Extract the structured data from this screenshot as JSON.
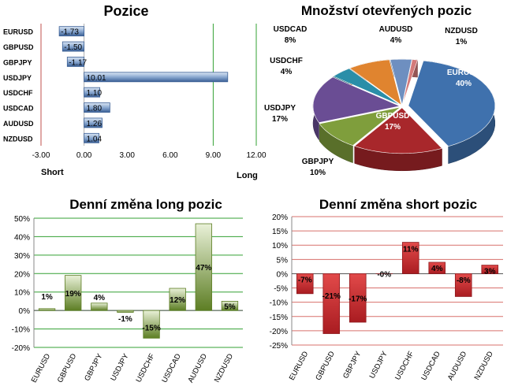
{
  "charts": {
    "positions": {
      "title": "Pozice",
      "short_label": "Short",
      "long_label": "Long"
    },
    "open_positions": {
      "title": "Množství otevřených pozic"
    },
    "long_change": {
      "title": "Denní změna long pozic"
    },
    "short_change": {
      "title": "Denní změna short pozic"
    }
  },
  "colors": {
    "bar_blue": "#3f6faa",
    "bar_green": "#6d8f2e",
    "bar_red": "#c0272d",
    "grid_green": "#33a033",
    "axis_red": "#c0504d",
    "pie": [
      "#3f71ad",
      "#a8272b",
      "#7f9e3c",
      "#6a4d94",
      "#2a8ea8",
      "#e0842f",
      "#6e8fc0",
      "#d47a7a"
    ]
  },
  "chart_data": [
    {
      "type": "bar",
      "orientation": "horizontal",
      "title": "Pozice",
      "categories": [
        "EURUSD",
        "GBPUSD",
        "GBPJPY",
        "USDJPY",
        "USDCHF",
        "USDCAD",
        "AUDUSD",
        "NZDUSD"
      ],
      "values": [
        -1.73,
        -1.5,
        -1.17,
        10.01,
        1.1,
        1.8,
        1.26,
        1.04
      ],
      "value_labels": [
        "-1.73",
        "-1.50",
        "-1.17",
        "10.01",
        "1.10",
        "1.80",
        "1.26",
        "1.04"
      ],
      "xlim": [
        -3,
        12
      ],
      "xticks": [
        "-3.00",
        "0.00",
        "3.00",
        "6.00",
        "9.00",
        "12.00"
      ],
      "xlabel_left": "Short",
      "xlabel_right": "Long"
    },
    {
      "type": "pie",
      "title": "Množství otevřených pozic",
      "labels": [
        "EURUSD",
        "GBPUSD",
        "GBPJPY",
        "USDJPY",
        "USDCHF",
        "USDCAD",
        "AUDUSD",
        "NZDUSD"
      ],
      "values": [
        40,
        17,
        10,
        17,
        4,
        8,
        4,
        1
      ],
      "value_labels": [
        "40%",
        "17%",
        "10%",
        "17%",
        "4%",
        "8%",
        "4%",
        "1%"
      ]
    },
    {
      "type": "bar",
      "title": "Denní změna long pozic",
      "categories": [
        "EURUSD",
        "GBPUSD",
        "GBPJPY",
        "USDJPY",
        "USDCHF",
        "USDCAD",
        "AUDUSD",
        "NZDUSD"
      ],
      "values": [
        1,
        19,
        4,
        -1,
        -15,
        12,
        47,
        5
      ],
      "value_labels": [
        "1%",
        "19%",
        "4%",
        "-1%",
        "-15%",
        "12%",
        "47%",
        "5%"
      ],
      "ylim": [
        -20,
        50
      ],
      "yticks": [
        "50%",
        "40%",
        "30%",
        "20%",
        "10%",
        "0%",
        "-10%",
        "-20%"
      ]
    },
    {
      "type": "bar",
      "title": "Denní změna short pozic",
      "categories": [
        "EURUSD",
        "GBPUSD",
        "GBPJPY",
        "USDJPY",
        "USDCHF",
        "USDCAD",
        "AUDUSD",
        "NZDUSD"
      ],
      "values": [
        -7,
        -21,
        -17,
        0,
        11,
        4,
        -8,
        3
      ],
      "value_labels": [
        "-7%",
        "-21%",
        "-17%",
        "-0%",
        "11%",
        "4%",
        "-8%",
        "3%"
      ],
      "ylim": [
        -25,
        20
      ],
      "yticks": [
        "20%",
        "15%",
        "10%",
        "5%",
        "0%",
        "-5%",
        "-10%",
        "-15%",
        "-20%",
        "-25%"
      ]
    }
  ]
}
